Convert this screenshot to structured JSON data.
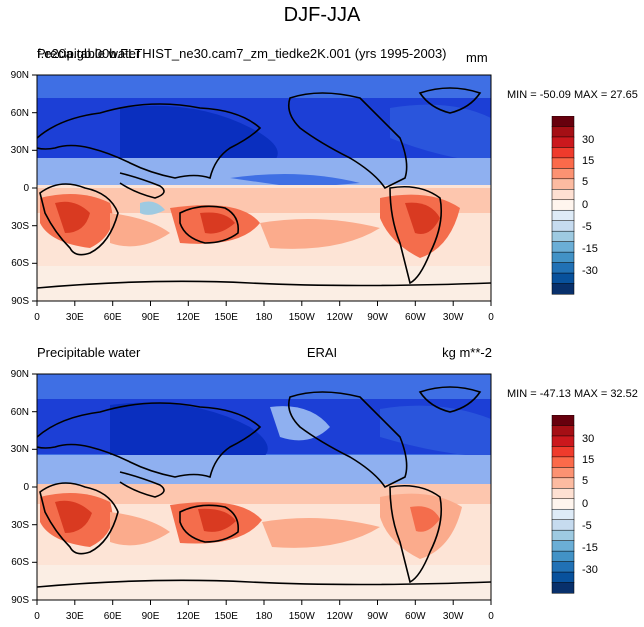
{
  "title": "DJF-JJA",
  "panels": [
    {
      "left_label": "Precipitable water",
      "center_label": "f.e20a.gb.00b.FLTHIST_ne30.cam7_zm_tiedke2K.001 (yrs 1995-2003)",
      "right_label": "mm",
      "minmax": "MIN = -50.09 MAX =  27.65"
    },
    {
      "left_label": "Precipitable water",
      "center_label": "ERAI",
      "right_label": "kg m**-2",
      "minmax": "MIN = -47.13 MAX =  32.52"
    }
  ],
  "lat_ticks": [
    "90N",
    "60N",
    "30N",
    "0",
    "30S",
    "60S",
    "90S"
  ],
  "lon_ticks": [
    "0",
    "30E",
    "60E",
    "90E",
    "120E",
    "150E",
    "180",
    "150W",
    "120W",
    "90W",
    "60W",
    "30W",
    "0"
  ],
  "colorbar": {
    "labels": [
      "30",
      "15",
      "5",
      "0",
      "-5",
      "-15",
      "-30"
    ],
    "colors": [
      "#67000d",
      "#a50f15",
      "#cb181d",
      "#ef3b2c",
      "#fb6a4a",
      "#fc9272",
      "#fcbba1",
      "#fee0d2",
      "#fff5ee",
      "#deebf7",
      "#c6dbef",
      "#9ecae1",
      "#6baed6",
      "#4292c6",
      "#2171b5",
      "#08519c",
      "#08306b"
    ]
  },
  "colors": {
    "deep_blue": "#1c3fd6",
    "mid_blue": "#3f6fe4",
    "light_blue": "#8fb0f0",
    "pale_blue": "#cfdcf8",
    "neutral": "#fbeee4",
    "pale_red": "#fdd0bc",
    "light_red": "#fbab8c",
    "mid_red": "#f46d4c",
    "deep_red": "#d93a21",
    "coast": "#000000"
  }
}
